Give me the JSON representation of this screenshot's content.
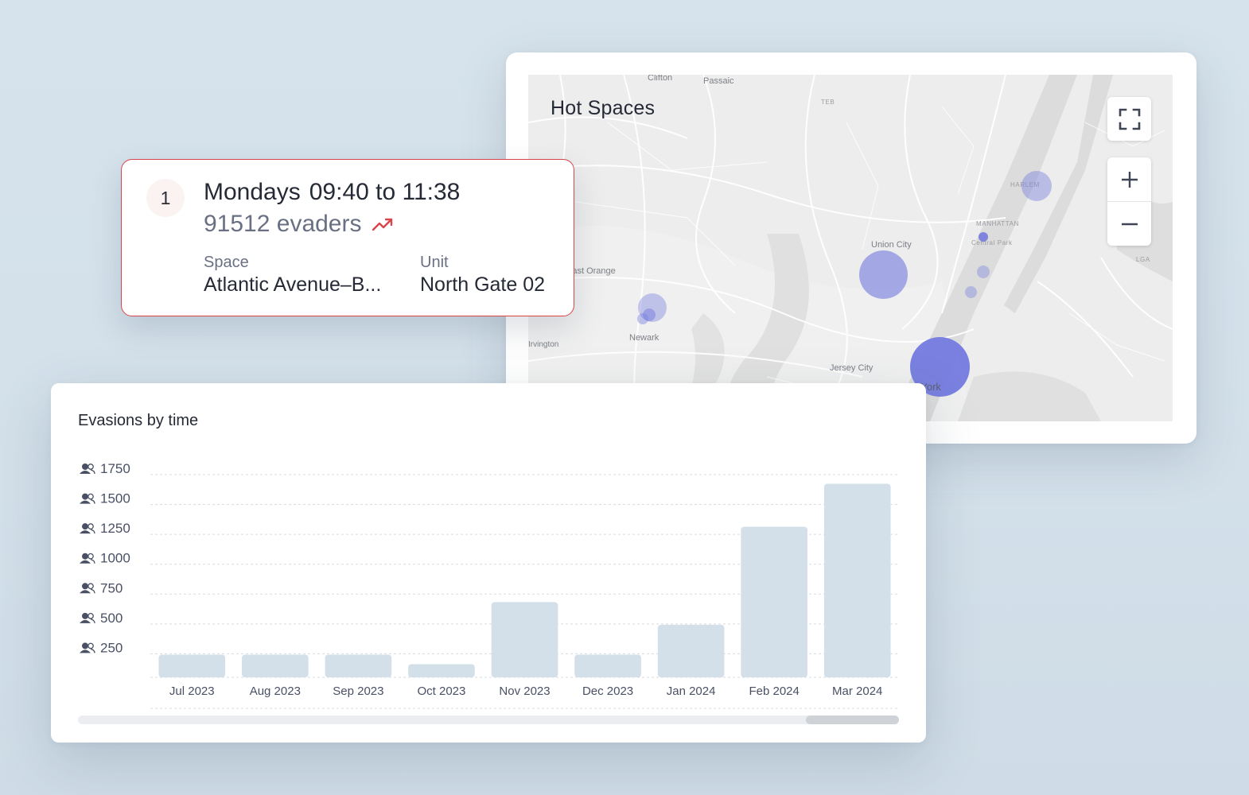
{
  "colors": {
    "bar": "#d3e0ea",
    "bubble": "#7b82de",
    "alert": "#d9454a",
    "trend_icon": "#d9454a"
  },
  "hot_spaces": {
    "title": "Hot Spaces",
    "labels": {
      "clifton": "Clifton",
      "passaic": "Passaic",
      "teb": "TEB",
      "harlem": "HARLEM",
      "manhattan": "MANHATTAN",
      "central_park": "Central Park",
      "union_city": "Union City",
      "lga": "LGA",
      "east_orange": "East Orange",
      "newark": "Newark",
      "irvington": "Irvington",
      "jersey_city": "Jersey City",
      "new_york": "New York"
    },
    "controls": {
      "fullscreen_icon": "fullscreen-icon",
      "zoom_in_icon": "plus-icon",
      "zoom_out_icon": "minus-icon"
    }
  },
  "popup": {
    "rank": "1",
    "day": "Mondays",
    "time_range": "09:40 to 11:38",
    "evaders": "91512 evaders",
    "trend_icon": "trending-up-icon",
    "space_label": "Space",
    "space_value": "Atlantic Avenue–B...",
    "unit_label": "Unit",
    "unit_value": "North Gate 02"
  },
  "evasions_chart": {
    "title": "Evasions by time",
    "y_icon": "people-icon"
  },
  "chart_data": {
    "type": "bar",
    "title": "Evasions by time",
    "categories": [
      "Jul 2023",
      "Aug 2023",
      "Sep 2023",
      "Oct 2023",
      "Nov 2023",
      "Dec 2023",
      "Jan 2024",
      "Feb 2024",
      "Mar 2024"
    ],
    "values": [
      190,
      190,
      190,
      110,
      630,
      190,
      440,
      1260,
      1620
    ],
    "yticks": [
      250,
      500,
      750,
      1000,
      1250,
      1500,
      1750
    ],
    "ylim": [
      0,
      1750
    ],
    "xlabel": "",
    "ylabel": "",
    "grid": true
  }
}
